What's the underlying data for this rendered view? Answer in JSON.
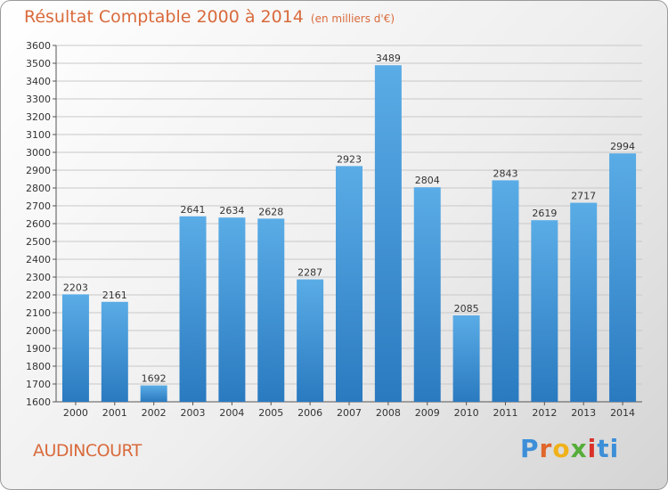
{
  "chart_data": {
    "type": "bar",
    "title": "Résultat Comptable 2000 à 2014",
    "subtitle": "(en milliers d'€)",
    "categories": [
      "2000",
      "2001",
      "2002",
      "2003",
      "2004",
      "2005",
      "2006",
      "2007",
      "2008",
      "2009",
      "2010",
      "2011",
      "2012",
      "2013",
      "2014"
    ],
    "values": [
      2203,
      2161,
      1692,
      2641,
      2634,
      2628,
      2287,
      2923,
      3489,
      2804,
      2085,
      2843,
      2619,
      2717,
      2994
    ],
    "ylim": [
      1600,
      3600
    ],
    "ytick_step": 100,
    "xlabel": "",
    "ylabel": "",
    "grid": true,
    "bar_color_top": "#5aace6",
    "bar_color_bottom": "#2a7ac0"
  },
  "footer": {
    "city": "AUDINCOURT",
    "logo_letters": [
      "P",
      "r",
      "o",
      "x",
      "i",
      "ti"
    ]
  }
}
